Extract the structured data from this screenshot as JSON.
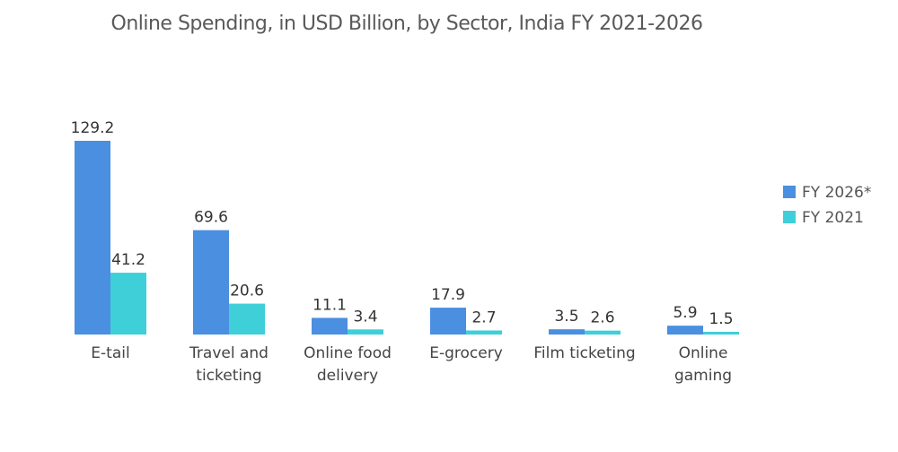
{
  "chart_data": {
    "type": "bar",
    "title": "Online Spending, in USD Billion, by Sector,  India FY 2021-2026",
    "xlabel": "",
    "ylabel": "",
    "categories": [
      [
        "E-tail"
      ],
      [
        "Travel and",
        "ticketing"
      ],
      [
        "Online food",
        "delivery"
      ],
      [
        "E-grocery"
      ],
      [
        "Film ticketing"
      ],
      [
        "Online",
        "gaming"
      ]
    ],
    "series": [
      {
        "name": "FY 2026*",
        "color": "#4a8fe0",
        "values": [
          129.2,
          69.6,
          11.1,
          17.9,
          3.5,
          5.9
        ]
      },
      {
        "name": "FY 2021",
        "color": "#3ecfd8",
        "values": [
          41.2,
          20.6,
          3.4,
          2.7,
          2.6,
          1.5
        ]
      }
    ],
    "ylim": [
      0,
      129.2
    ],
    "grid": false,
    "legend": "right",
    "data_labels": true
  }
}
